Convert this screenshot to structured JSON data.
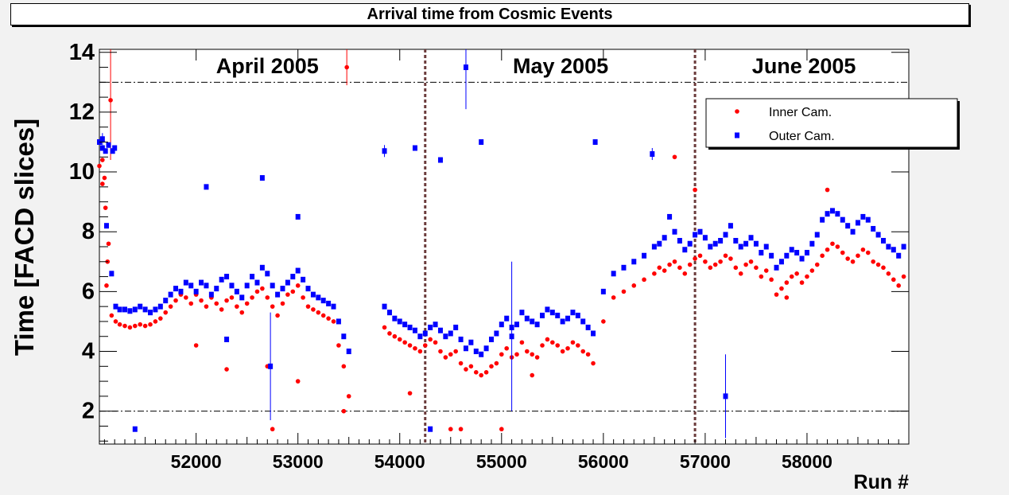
{
  "title": "Arrival time from Cosmic Events",
  "chart_data": {
    "type": "scatter",
    "title": "Arrival time from Cosmic Events",
    "xlabel": "Run #",
    "ylabel": "Time [FACD slices]",
    "xlim": [
      51050,
      59000
    ],
    "ylim": [
      0.9,
      14.1
    ],
    "x_ticks": [
      52000,
      53000,
      54000,
      55000,
      56000,
      57000,
      58000
    ],
    "y_ticks": [
      2,
      4,
      6,
      8,
      10,
      12,
      14
    ],
    "grid": false,
    "legend_position": "top-right",
    "reference_lines_y": [
      2,
      13
    ],
    "month_boundaries_x": [
      54250,
      56900
    ],
    "month_labels": [
      {
        "label": "April 2005",
        "x": 52700
      },
      {
        "label": "May 2005",
        "x": 55580
      },
      {
        "label": "June 2005",
        "x": 57970
      }
    ],
    "series": [
      {
        "name": "Inner Cam.",
        "color": "#ff0000",
        "marker": "star",
        "x": [
          51050,
          51080,
          51110,
          51140,
          51170,
          51210,
          51250,
          51300,
          51350,
          51400,
          51450,
          51500,
          51550,
          51600,
          51650,
          51700,
          51750,
          51800,
          51850,
          51900,
          51950,
          52000,
          52050,
          52100,
          52150,
          52200,
          52250,
          52300,
          52350,
          52400,
          52450,
          52500,
          52550,
          52600,
          52650,
          52700,
          52750,
          52800,
          52850,
          52900,
          52950,
          53000,
          53050,
          53100,
          53150,
          53200,
          53250,
          53300,
          53350,
          53400,
          53450,
          53500,
          53850,
          53900,
          53950,
          54000,
          54050,
          54100,
          54150,
          54200,
          54250,
          54300,
          54350,
          54400,
          54450,
          54500,
          54550,
          54600,
          54650,
          54700,
          54750,
          54800,
          54850,
          54900,
          54950,
          55000,
          55050,
          55100,
          55150,
          55200,
          55250,
          55300,
          55350,
          55400,
          55450,
          55500,
          55550,
          55600,
          55650,
          55700,
          55750,
          55800,
          55850,
          55900,
          56000,
          56100,
          56200,
          56300,
          56400,
          56500,
          56550,
          56600,
          56650,
          56700,
          56750,
          56800,
          56850,
          56900,
          56950,
          57000,
          57050,
          57100,
          57150,
          57200,
          57250,
          57300,
          57350,
          57400,
          57450,
          57500,
          57550,
          57600,
          57650,
          57700,
          57750,
          57800,
          57850,
          57900,
          57950,
          58000,
          58050,
          58100,
          58150,
          58200,
          58250,
          58300,
          58350,
          58400,
          58450,
          58500,
          58550,
          58600,
          58650,
          58700,
          58750,
          58800,
          58850,
          58900,
          58950,
          51080,
          51100,
          51130,
          51160,
          52700,
          52750,
          53480,
          51120,
          52300,
          53450,
          54600,
          55300,
          56700,
          58200,
          54100,
          55000,
          54500,
          52000,
          53000,
          56900,
          57800
        ],
        "y": [
          10.2,
          9.6,
          8.8,
          7.6,
          5.2,
          5.0,
          4.9,
          4.85,
          4.8,
          4.85,
          4.9,
          4.85,
          4.9,
          5.0,
          5.1,
          5.3,
          5.5,
          5.7,
          5.9,
          5.8,
          5.6,
          5.9,
          5.7,
          5.5,
          5.8,
          5.6,
          5.4,
          5.7,
          5.8,
          5.5,
          5.3,
          5.6,
          5.8,
          6.0,
          6.1,
          5.8,
          5.5,
          5.2,
          5.6,
          5.9,
          6.0,
          6.2,
          5.8,
          5.5,
          5.4,
          5.3,
          5.2,
          5.1,
          5.0,
          4.2,
          3.5,
          2.5,
          4.8,
          4.6,
          4.5,
          4.4,
          4.3,
          4.2,
          4.1,
          4.0,
          4.2,
          4.4,
          4.3,
          4.0,
          3.8,
          3.9,
          4.0,
          3.6,
          3.4,
          3.5,
          3.3,
          3.2,
          3.3,
          3.5,
          3.6,
          3.9,
          4.1,
          3.8,
          3.9,
          4.3,
          4.0,
          3.9,
          3.8,
          4.2,
          4.4,
          4.3,
          4.2,
          4.0,
          4.1,
          4.3,
          4.2,
          4.0,
          3.9,
          3.6,
          5.0,
          5.8,
          6.0,
          6.2,
          6.4,
          6.6,
          6.8,
          6.7,
          6.9,
          7.0,
          6.8,
          6.6,
          6.9,
          7.1,
          7.2,
          7.0,
          6.8,
          6.9,
          7.0,
          7.2,
          7.1,
          6.8,
          6.6,
          6.9,
          7.0,
          6.8,
          6.5,
          6.7,
          6.4,
          5.9,
          6.1,
          6.3,
          6.5,
          6.6,
          6.3,
          6.5,
          6.7,
          6.9,
          7.2,
          7.4,
          7.6,
          7.5,
          7.3,
          7.1,
          7.0,
          7.2,
          7.4,
          7.3,
          7.0,
          6.9,
          6.8,
          6.6,
          6.4,
          6.2,
          6.5,
          10.4,
          9.8,
          7.0,
          12.4,
          3.5,
          1.4,
          13.5,
          6.2,
          3.4,
          2.0,
          1.4,
          3.2,
          10.5,
          9.4,
          2.6,
          1.4,
          1.4,
          4.2,
          3.0,
          9.4,
          5.8
        ],
        "yerr": [
          0.1,
          0.1,
          0.1,
          0.1,
          0.1,
          0.1,
          0.05,
          0.05,
          0.05,
          0.05,
          0.05,
          0.05,
          0.05,
          0.05,
          0.05,
          0.05,
          0.05,
          0.05,
          0.05,
          0.05,
          0.05,
          0.05,
          0.05,
          0.05,
          0.05,
          0.05,
          0.05,
          0.05,
          0.05,
          0.05,
          0.05,
          0.05,
          0.05,
          0.05,
          0.05,
          0.05,
          0.05,
          0.05,
          0.05,
          0.05,
          0.05,
          0.05,
          0.05,
          0.05,
          0.05,
          0.05,
          0.05,
          0.05,
          0.05,
          0.1,
          0.1,
          0.1,
          0.05,
          0.05,
          0.05,
          0.05,
          0.05,
          0.05,
          0.05,
          0.05,
          0.05,
          0.05,
          0.05,
          0.05,
          0.05,
          0.05,
          0.05,
          0.05,
          0.05,
          0.05,
          0.05,
          0.05,
          0.05,
          0.05,
          0.05,
          0.05,
          0.05,
          0.05,
          0.05,
          0.05,
          0.05,
          0.05,
          0.05,
          0.05,
          0.05,
          0.05,
          0.05,
          0.05,
          0.05,
          0.05,
          0.05,
          0.05,
          0.05,
          0.05,
          0.05,
          0.05,
          0.05,
          0.05,
          0.05,
          0.05,
          0.05,
          0.05,
          0.05,
          0.05,
          0.05,
          0.05,
          0.05,
          0.05,
          0.05,
          0.05,
          0.05,
          0.05,
          0.05,
          0.05,
          0.05,
          0.05,
          0.05,
          0.05,
          0.05,
          0.05,
          0.05,
          0.05,
          0.05,
          0.05,
          0.05,
          0.05,
          0.05,
          0.05,
          0.05,
          0.05,
          0.05,
          0.05,
          0.05,
          0.05,
          0.05,
          0.05,
          0.05,
          0.05,
          0.05,
          0.05,
          0.05,
          0.05,
          0.05,
          0.05,
          0.05,
          0.05,
          0.05,
          0.05,
          0.05,
          0.1,
          0.1,
          0.1,
          2.0,
          0.1,
          0.1,
          0.6,
          0.1,
          0.1,
          0.1,
          0.1,
          0.1,
          0.1,
          0.1,
          0.1,
          0.1,
          0.1,
          0.1,
          0.1,
          0.1,
          0.1
        ]
      },
      {
        "name": "Outer Cam.",
        "color": "#0000ff",
        "marker": "square",
        "x": [
          51050,
          51080,
          51110,
          51140,
          51170,
          51210,
          51250,
          51300,
          51350,
          51400,
          51450,
          51500,
          51550,
          51600,
          51650,
          51700,
          51750,
          51800,
          51850,
          51900,
          51950,
          52000,
          52050,
          52100,
          52150,
          52200,
          52250,
          52300,
          52350,
          52400,
          52450,
          52500,
          52550,
          52600,
          52650,
          52700,
          52750,
          52800,
          52850,
          52900,
          52950,
          53000,
          53050,
          53100,
          53150,
          53200,
          53250,
          53300,
          53350,
          53400,
          53450,
          53500,
          53850,
          53900,
          53950,
          54000,
          54050,
          54100,
          54150,
          54200,
          54250,
          54300,
          54350,
          54400,
          54450,
          54500,
          54550,
          54600,
          54650,
          54700,
          54750,
          54800,
          54850,
          54900,
          54950,
          55000,
          55050,
          55100,
          55150,
          55200,
          55250,
          55300,
          55350,
          55400,
          55450,
          55500,
          55550,
          55600,
          55650,
          55700,
          55750,
          55800,
          55850,
          55900,
          56000,
          56100,
          56200,
          56300,
          56400,
          56500,
          56550,
          56600,
          56650,
          56700,
          56750,
          56800,
          56850,
          56900,
          56950,
          57000,
          57050,
          57100,
          57150,
          57200,
          57250,
          57300,
          57350,
          57400,
          57450,
          57500,
          57550,
          57600,
          57650,
          57700,
          57750,
          57800,
          57850,
          57900,
          57950,
          58000,
          58050,
          58100,
          58150,
          58200,
          58250,
          58300,
          58350,
          58400,
          58450,
          58500,
          58550,
          58600,
          58650,
          58700,
          58750,
          58800,
          58850,
          58900,
          58950,
          51080,
          51120,
          51180,
          51200,
          52650,
          52730,
          53850,
          54150,
          54400,
          54650,
          54800,
          55920,
          56480,
          51400,
          57200,
          52300,
          52100,
          53000,
          54300,
          55100
        ],
        "y": [
          11.0,
          10.8,
          10.7,
          10.9,
          6.6,
          5.5,
          5.4,
          5.4,
          5.35,
          5.4,
          5.5,
          5.4,
          5.3,
          5.4,
          5.5,
          5.7,
          5.9,
          6.1,
          6.0,
          6.3,
          6.2,
          6.0,
          6.3,
          6.2,
          5.9,
          6.1,
          6.4,
          6.5,
          6.2,
          6.0,
          5.8,
          6.2,
          6.5,
          6.3,
          6.8,
          6.6,
          6.2,
          5.9,
          6.1,
          6.3,
          6.5,
          6.7,
          6.4,
          6.1,
          5.9,
          5.8,
          5.7,
          5.6,
          5.5,
          5.0,
          4.5,
          4.0,
          5.5,
          5.3,
          5.1,
          5.0,
          4.9,
          4.8,
          4.7,
          4.5,
          4.6,
          4.8,
          4.9,
          4.7,
          4.5,
          4.6,
          4.8,
          4.4,
          4.1,
          4.3,
          4.0,
          3.9,
          4.1,
          4.4,
          4.6,
          4.9,
          5.1,
          4.8,
          4.9,
          5.3,
          5.1,
          5.0,
          4.9,
          5.2,
          5.4,
          5.3,
          5.2,
          5.0,
          5.1,
          5.3,
          5.2,
          5.0,
          4.8,
          4.6,
          6.0,
          6.6,
          6.8,
          7.0,
          7.2,
          7.5,
          7.6,
          7.8,
          8.5,
          8.0,
          7.7,
          7.4,
          7.6,
          7.9,
          8.0,
          7.8,
          7.5,
          7.6,
          7.7,
          7.9,
          8.2,
          7.7,
          7.5,
          7.6,
          7.8,
          7.6,
          7.3,
          7.5,
          7.2,
          6.8,
          7.0,
          7.2,
          7.4,
          7.3,
          7.1,
          7.3,
          7.6,
          7.9,
          8.4,
          8.6,
          8.7,
          8.6,
          8.4,
          8.2,
          8.0,
          8.3,
          8.5,
          8.4,
          8.1,
          7.9,
          7.7,
          7.5,
          7.4,
          7.2,
          7.5,
          11.1,
          8.2,
          10.7,
          10.8,
          9.8,
          3.5,
          10.7,
          10.8,
          10.4,
          13.5,
          11.0,
          11.0,
          10.6,
          1.4,
          2.5,
          4.4,
          9.5,
          8.5,
          1.4,
          4.5
        ],
        "yerr": [
          0.1,
          0.1,
          0.1,
          0.1,
          0.1,
          0.1,
          0.05,
          0.05,
          0.05,
          0.05,
          0.05,
          0.05,
          0.05,
          0.05,
          0.05,
          0.05,
          0.05,
          0.05,
          0.05,
          0.05,
          0.05,
          0.05,
          0.05,
          0.05,
          0.05,
          0.05,
          0.05,
          0.05,
          0.05,
          0.05,
          0.05,
          0.05,
          0.05,
          0.05,
          0.05,
          0.05,
          0.05,
          0.05,
          0.05,
          0.05,
          0.05,
          0.05,
          0.05,
          0.05,
          0.05,
          0.05,
          0.05,
          0.05,
          0.05,
          0.1,
          0.1,
          0.1,
          0.05,
          0.05,
          0.05,
          0.05,
          0.05,
          0.05,
          0.05,
          0.05,
          0.05,
          0.05,
          0.05,
          0.05,
          0.05,
          0.05,
          0.05,
          0.05,
          0.05,
          0.05,
          0.05,
          0.05,
          0.05,
          0.05,
          0.05,
          0.05,
          0.05,
          0.05,
          0.05,
          0.05,
          0.05,
          0.05,
          0.05,
          0.05,
          0.05,
          0.05,
          0.05,
          0.05,
          0.05,
          0.05,
          0.05,
          0.05,
          0.05,
          0.05,
          0.05,
          0.05,
          0.05,
          0.05,
          0.05,
          0.05,
          0.05,
          0.05,
          0.05,
          0.05,
          0.05,
          0.05,
          0.05,
          0.05,
          0.05,
          0.05,
          0.05,
          0.05,
          0.05,
          0.05,
          0.05,
          0.05,
          0.05,
          0.05,
          0.05,
          0.05,
          0.05,
          0.05,
          0.05,
          0.05,
          0.05,
          0.05,
          0.05,
          0.05,
          0.05,
          0.05,
          0.05,
          0.05,
          0.05,
          0.05,
          0.05,
          0.05,
          0.05,
          0.05,
          0.05,
          0.05,
          0.05,
          0.05,
          0.05,
          0.05,
          0.05,
          0.05,
          0.05,
          0.05,
          0.05,
          0.2,
          0.1,
          0.1,
          0.1,
          0.1,
          1.8,
          0.2,
          0.1,
          0.1,
          1.4,
          0.1,
          0.1,
          0.2,
          0.1,
          1.4,
          0.1,
          0.1,
          0.1,
          0.1,
          2.5
        ]
      }
    ]
  }
}
